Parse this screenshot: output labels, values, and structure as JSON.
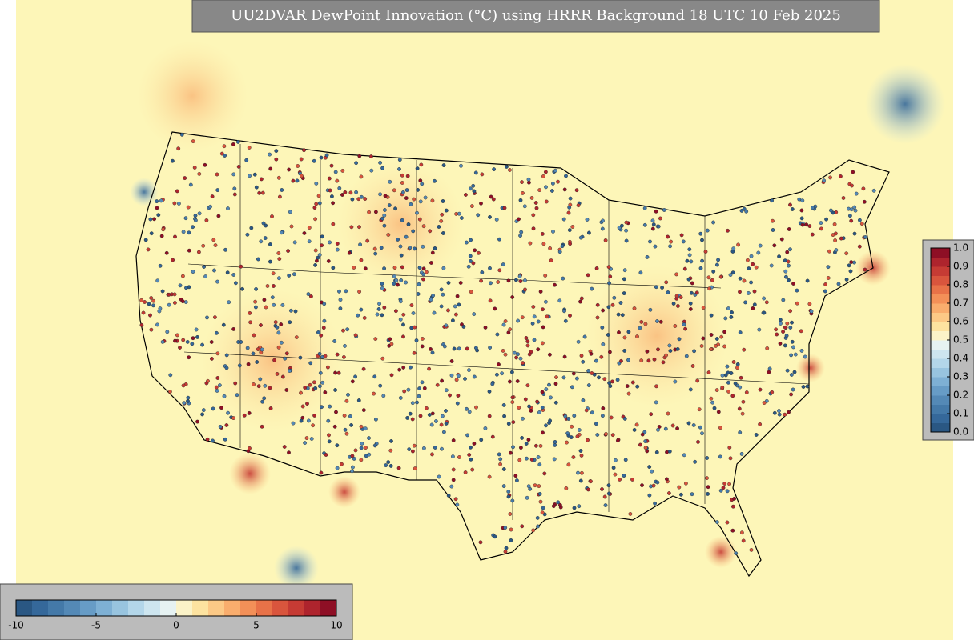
{
  "title": "UU2DVAR DewPoint Innovation (°C) using HRRR Background 18 UTC 10 Feb 2025",
  "colorbar_bottom": {
    "lim": [
      -10,
      10
    ],
    "ticks": [
      -10,
      -5,
      0,
      5,
      10
    ]
  },
  "colorbar_right": {
    "lim": [
      0,
      1
    ],
    "ticks": [
      {
        "value": 0,
        "label": "0.0"
      },
      0.1,
      0.2,
      0.3,
      0.4,
      0.5,
      0.6,
      0.7,
      0.8,
      0.9,
      {
        "value": 1,
        "label": "1.0"
      }
    ]
  },
  "colors": [
    "#2a5783",
    "#35689a",
    "#4479a8",
    "#5489b6",
    "#679cc6",
    "#7eb0d4",
    "#98c4df",
    "#b3d6e9",
    "#cde5ef",
    "#e6f2f2",
    "#fbf3c8",
    "#fde3a0",
    "#fcc986",
    "#f9ad6d",
    "#f39058",
    "#e87248",
    "#d9553d",
    "#c63b34",
    "#ae242d",
    "#8e0f25"
  ]
}
